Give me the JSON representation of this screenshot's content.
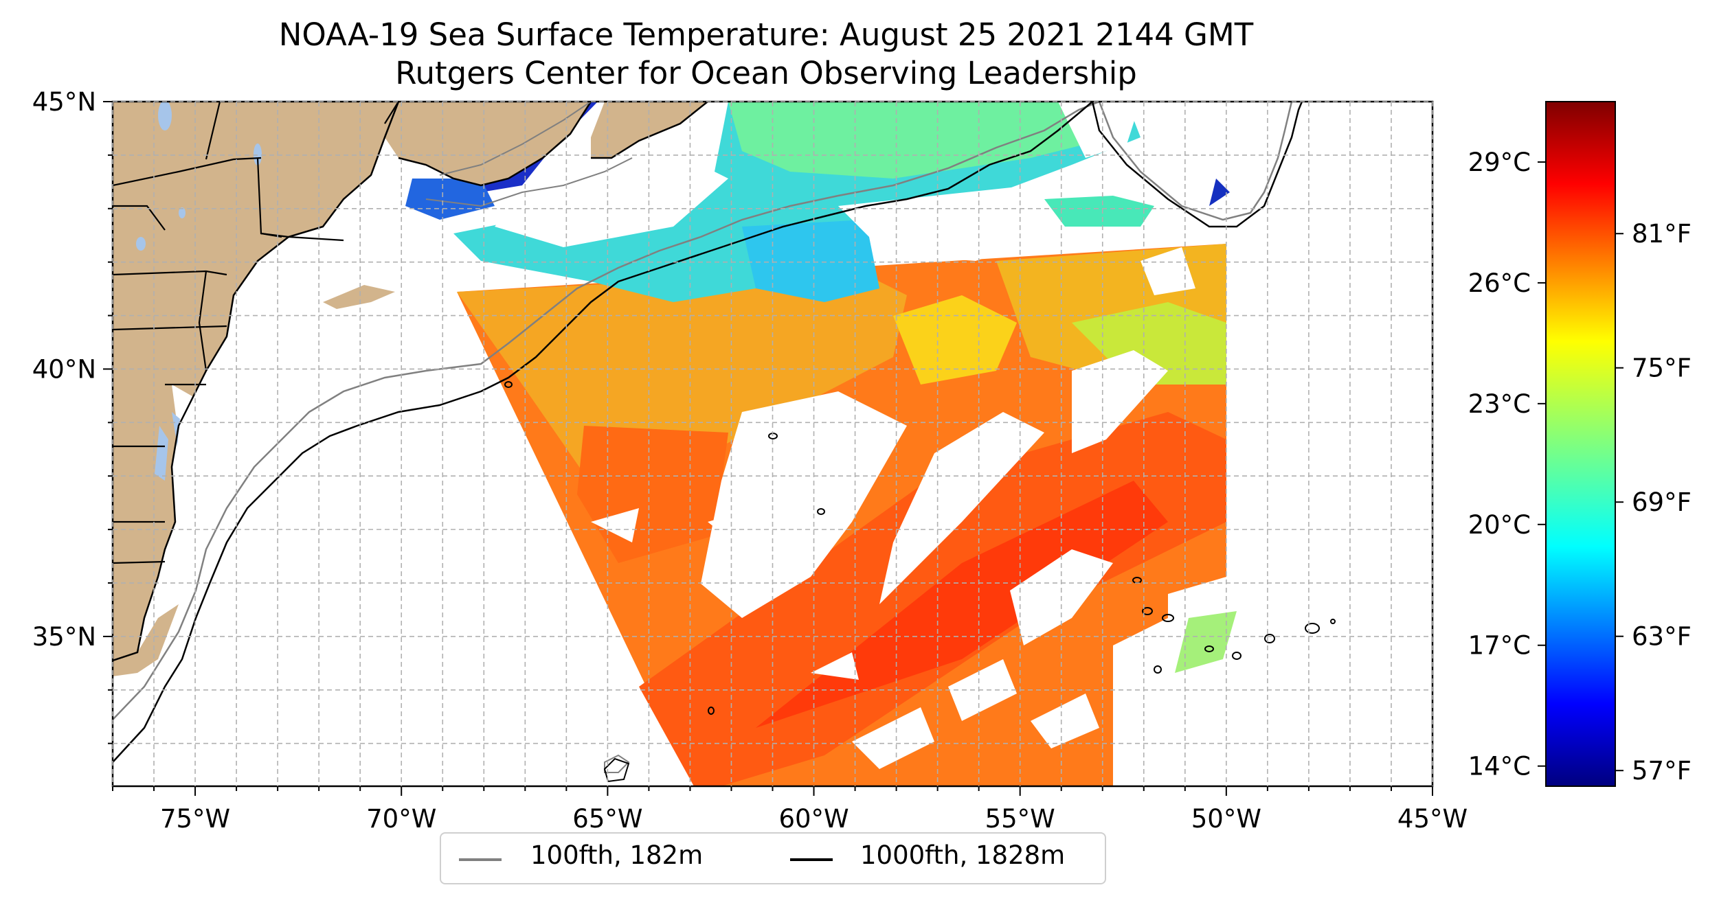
{
  "title": {
    "line1": "NOAA-19 Sea Surface Temperature: August 25 2021 2144 GMT",
    "line2": "Rutgers Center for Ocean Observing Leadership"
  },
  "map": {
    "lon_range": [
      -77,
      -45
    ],
    "lat_range": [
      32.2,
      45
    ],
    "lon_ticks": [
      {
        "lon": -75,
        "label": "75°W"
      },
      {
        "lon": -70,
        "label": "70°W"
      },
      {
        "lon": -65,
        "label": "65°W"
      },
      {
        "lon": -60,
        "label": "60°W"
      },
      {
        "lon": -55,
        "label": "55°W"
      },
      {
        "lon": -50,
        "label": "50°W"
      },
      {
        "lon": -45,
        "label": "45°W"
      }
    ],
    "lat_ticks": [
      {
        "lat": 45,
        "label": "45°N"
      },
      {
        "lat": 40,
        "label": "40°N"
      },
      {
        "lat": 35,
        "label": "35°N"
      }
    ],
    "gridlines": true,
    "land_color": "#d2b48c",
    "water_color": "#a6c5ea"
  },
  "colorbar": {
    "colormap": "jet",
    "celsius_ticks": [
      {
        "value": 14,
        "label": "14°C"
      },
      {
        "value": 17,
        "label": "17°C"
      },
      {
        "value": 20,
        "label": "20°C"
      },
      {
        "value": 23,
        "label": "23°C"
      },
      {
        "value": 26,
        "label": "26°C"
      },
      {
        "value": 29,
        "label": "29°C"
      }
    ],
    "fahrenheit_ticks": [
      {
        "value": 57,
        "label": "57°F"
      },
      {
        "value": 63,
        "label": "63°F"
      },
      {
        "value": 69,
        "label": "69°F"
      },
      {
        "value": 75,
        "label": "75°F"
      },
      {
        "value": 81,
        "label": "81°F"
      }
    ],
    "range_c": [
      13.5,
      30.5
    ]
  },
  "legend": {
    "items": [
      {
        "label": "100fth, 182m",
        "color": "#808080"
      },
      {
        "label": "1000fth, 1828m",
        "color": "#000000"
      }
    ]
  }
}
